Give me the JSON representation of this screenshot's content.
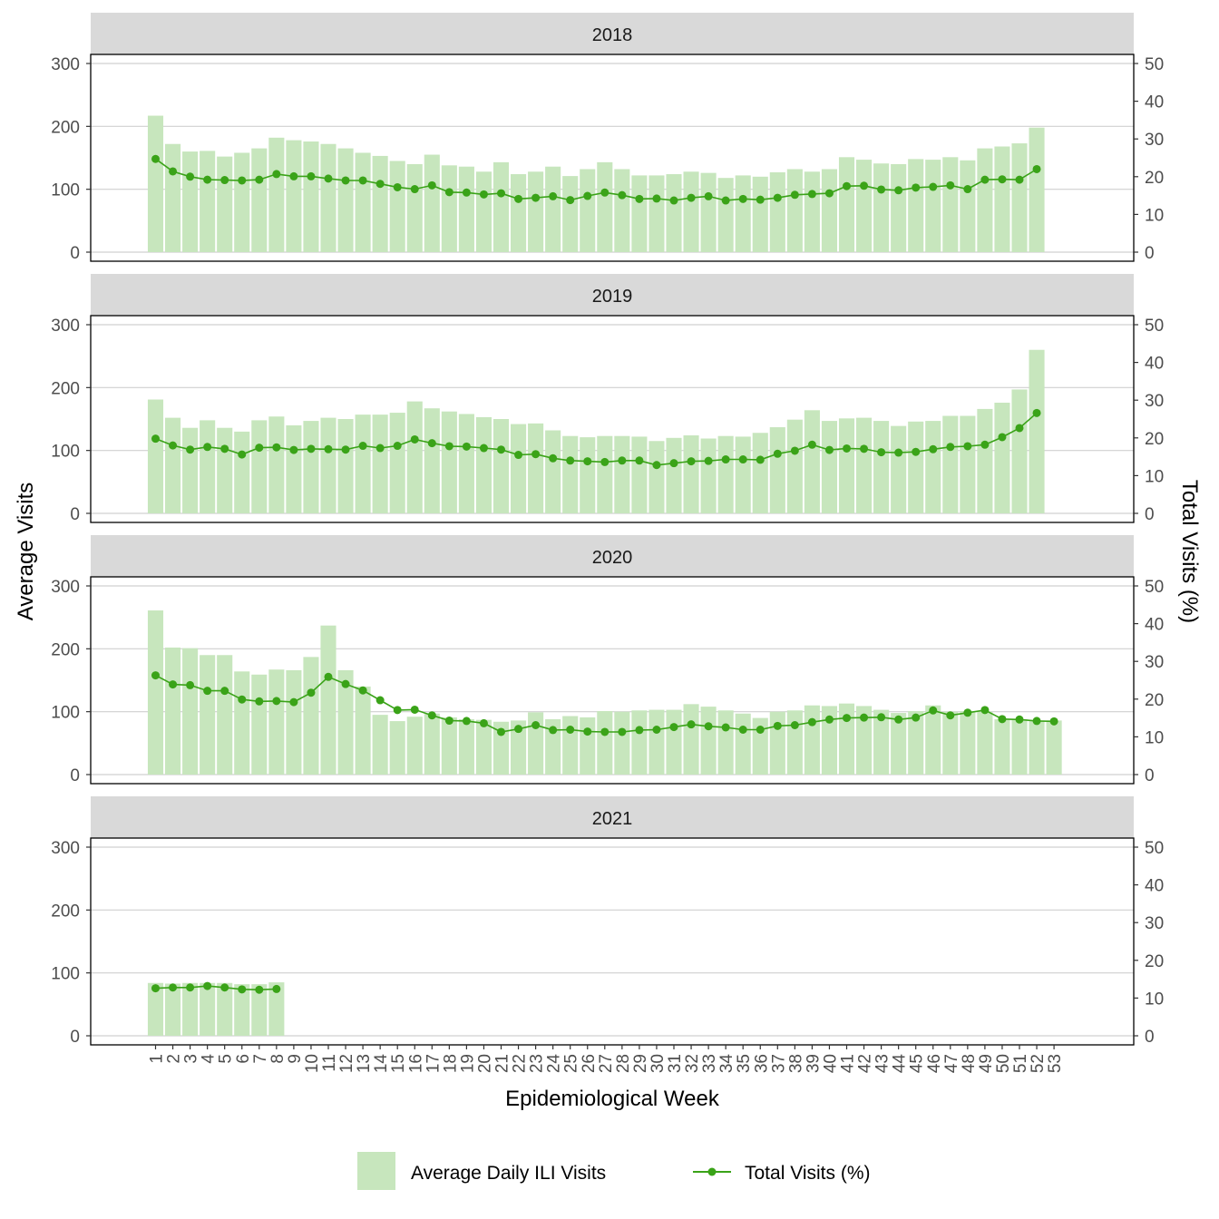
{
  "colors": {
    "bar": "#c7e6bd",
    "line": "#3aa318",
    "strip": "#d9d9d9",
    "grid": "#d0d0d0",
    "frame": "#000000"
  },
  "axes": {
    "x_title": "Epidemiological Week",
    "y_left_title": "Average Visits",
    "y_right_title": "Total Visits (%)",
    "y_left_ticks": [
      "0",
      "100",
      "200",
      "300"
    ],
    "y_right_ticks": [
      "0",
      "10",
      "20",
      "30",
      "40",
      "50"
    ],
    "x_ticks": [
      "1",
      "2",
      "3",
      "4",
      "5",
      "6",
      "7",
      "8",
      "9",
      "10",
      "11",
      "12",
      "13",
      "14",
      "15",
      "16",
      "17",
      "18",
      "19",
      "20",
      "21",
      "22",
      "23",
      "24",
      "25",
      "26",
      "27",
      "28",
      "29",
      "30",
      "31",
      "32",
      "33",
      "34",
      "35",
      "36",
      "37",
      "38",
      "39",
      "40",
      "41",
      "42",
      "43",
      "44",
      "45",
      "46",
      "47",
      "48",
      "49",
      "50",
      "51",
      "52",
      "53"
    ]
  },
  "legend": {
    "bar_label": "Average Daily ILI Visits",
    "line_label": "Total Visits (%)"
  },
  "chart_data": {
    "type": "bar",
    "x": [
      1,
      2,
      3,
      4,
      5,
      6,
      7,
      8,
      9,
      10,
      11,
      12,
      13,
      14,
      15,
      16,
      17,
      18,
      19,
      20,
      21,
      22,
      23,
      24,
      25,
      26,
      27,
      28,
      29,
      30,
      31,
      32,
      33,
      34,
      35,
      36,
      37,
      38,
      39,
      40,
      41,
      42,
      43,
      44,
      45,
      46,
      47,
      48,
      49,
      50,
      51,
      52,
      53
    ],
    "xlabel": "Epidemiological Week",
    "ylabel": "Average Visits",
    "y2label": "Total Visits (%)",
    "ylim": [
      0,
      300
    ],
    "y2lim": [
      0,
      50
    ],
    "legend_position": "bottom",
    "grid": true,
    "panels": [
      {
        "label": "2018",
        "bars": [
          217,
          172,
          160,
          161,
          152,
          158,
          165,
          182,
          178,
          176,
          172,
          165,
          158,
          153,
          145,
          140,
          155,
          138,
          136,
          128,
          143,
          124,
          128,
          136,
          121,
          132,
          143,
          132,
          122,
          122,
          124,
          128,
          126,
          118,
          122,
          120,
          127,
          132,
          128,
          132,
          151,
          147,
          141,
          140,
          148,
          147,
          151,
          146,
          165,
          168,
          173,
          198,
          null
        ],
        "line": [
          24.7,
          21.4,
          20.0,
          19.2,
          19.1,
          19.0,
          19.2,
          20.7,
          20.1,
          20.1,
          19.5,
          19.0,
          19.0,
          18.1,
          17.2,
          16.7,
          17.7,
          15.9,
          15.8,
          15.3,
          15.6,
          14.1,
          14.4,
          14.8,
          13.8,
          14.9,
          15.8,
          15.1,
          14.1,
          14.2,
          13.7,
          14.4,
          14.8,
          13.7,
          14.1,
          13.9,
          14.4,
          15.2,
          15.4,
          15.6,
          17.5,
          17.6,
          16.6,
          16.4,
          17.1,
          17.3,
          17.7,
          16.7,
          19.2,
          19.3,
          19.2,
          22.0,
          null
        ]
      },
      {
        "label": "2019",
        "bars": [
          181,
          152,
          136,
          148,
          136,
          130,
          148,
          154,
          140,
          147,
          152,
          150,
          157,
          157,
          160,
          178,
          167,
          162,
          158,
          153,
          150,
          142,
          143,
          132,
          123,
          121,
          123,
          123,
          122,
          115,
          120,
          124,
          119,
          123,
          122,
          128,
          137,
          149,
          164,
          147,
          151,
          152,
          147,
          139,
          146,
          147,
          155,
          155,
          166,
          176,
          197,
          260,
          null
        ],
        "line": [
          19.8,
          18.0,
          16.9,
          17.6,
          17.1,
          15.6,
          17.4,
          17.5,
          16.8,
          17.1,
          17.0,
          16.9,
          17.9,
          17.3,
          17.9,
          19.6,
          18.6,
          17.8,
          17.7,
          17.3,
          16.9,
          15.5,
          15.7,
          14.6,
          14.0,
          13.8,
          13.6,
          14.0,
          14.0,
          12.8,
          13.3,
          13.8,
          13.9,
          14.3,
          14.3,
          14.2,
          15.8,
          16.6,
          18.2,
          16.8,
          17.2,
          17.1,
          16.2,
          16.1,
          16.3,
          17.0,
          17.6,
          17.8,
          18.2,
          20.2,
          22.6,
          26.6,
          null
        ]
      },
      {
        "label": "2020",
        "bars": [
          261,
          202,
          201,
          190,
          190,
          164,
          159,
          167,
          166,
          187,
          237,
          166,
          140,
          95,
          85,
          92,
          97,
          91,
          88,
          87,
          84,
          86,
          99,
          88,
          93,
          91,
          101,
          100,
          102,
          103,
          103,
          112,
          108,
          102,
          97,
          90,
          100,
          102,
          110,
          109,
          113,
          109,
          103,
          98,
          101,
          110,
          100,
          101,
          100,
          88,
          88,
          86,
          86
        ],
        "line": [
          26.3,
          23.9,
          23.7,
          22.2,
          22.2,
          19.9,
          19.4,
          19.5,
          19.2,
          21.7,
          25.9,
          24.0,
          22.3,
          19.7,
          17.1,
          17.2,
          15.7,
          14.3,
          14.2,
          13.6,
          11.3,
          12.1,
          13.1,
          11.8,
          11.9,
          11.4,
          11.3,
          11.3,
          11.8,
          11.9,
          12.6,
          13.3,
          12.8,
          12.5,
          11.9,
          11.9,
          12.9,
          13.1,
          13.9,
          14.6,
          15.0,
          15.1,
          15.2,
          14.6,
          15.1,
          17.0,
          15.7,
          16.4,
          17.1,
          14.7,
          14.6,
          14.2,
          14.1
        ]
      },
      {
        "label": "2021",
        "bars": [
          84,
          83,
          84,
          84,
          84,
          82,
          82,
          85,
          null,
          null,
          null,
          null,
          null,
          null,
          null,
          null,
          null,
          null,
          null,
          null,
          null,
          null,
          null,
          null,
          null,
          null,
          null,
          null,
          null,
          null,
          null,
          null,
          null,
          null,
          null,
          null,
          null,
          null,
          null,
          null,
          null,
          null,
          null,
          null,
          null,
          null,
          null,
          null,
          null,
          null,
          null,
          null,
          null
        ],
        "line": [
          12.6,
          12.8,
          12.8,
          13.2,
          12.8,
          12.3,
          12.2,
          12.4,
          null,
          null,
          null,
          null,
          null,
          null,
          null,
          null,
          null,
          null,
          null,
          null,
          null,
          null,
          null,
          null,
          null,
          null,
          null,
          null,
          null,
          null,
          null,
          null,
          null,
          null,
          null,
          null,
          null,
          null,
          null,
          null,
          null,
          null,
          null,
          null,
          null,
          null,
          null,
          null,
          null,
          null,
          null,
          null,
          null
        ]
      }
    ]
  }
}
